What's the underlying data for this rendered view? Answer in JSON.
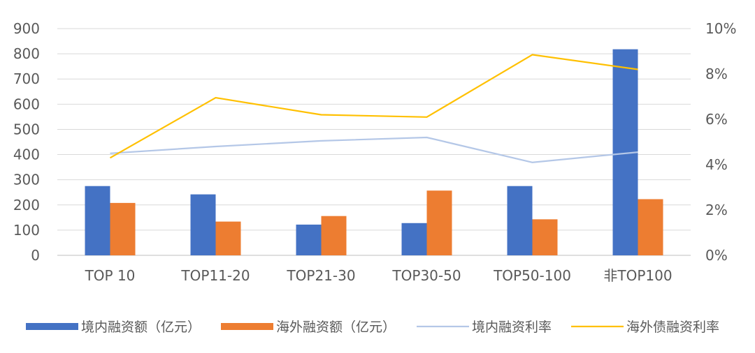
{
  "chart_data": {
    "type": "bar",
    "categories": [
      "TOP 10",
      "TOP11-20",
      "TOP21-30",
      "TOP30-50",
      "TOP50-100",
      "非TOP100"
    ],
    "series": [
      {
        "name": "境内融资额（亿元）",
        "type": "bar",
        "axis": "left",
        "color": "#4472C4",
        "values": [
          275,
          242,
          122,
          128,
          275,
          818
        ]
      },
      {
        "name": "海外融资额（亿元）",
        "type": "bar",
        "axis": "left",
        "color": "#ED7D31",
        "values": [
          208,
          134,
          156,
          257,
          143,
          223
        ]
      },
      {
        "name": "境内融资利率",
        "type": "line",
        "axis": "right",
        "color": "#B4C7E7",
        "values": [
          4.5,
          4.8,
          5.05,
          5.2,
          4.1,
          4.55
        ]
      },
      {
        "name": "海外债融资利率",
        "type": "line",
        "axis": "right",
        "color": "#FFC000",
        "values": [
          4.3,
          6.95,
          6.2,
          6.1,
          8.85,
          8.2
        ]
      }
    ],
    "y_left": {
      "min": 0,
      "max": 900,
      "ticks": [
        "0",
        "100",
        "200",
        "300",
        "400",
        "500",
        "600",
        "700",
        "800",
        "900"
      ]
    },
    "y_right": {
      "min": 0,
      "max": 10,
      "ticks": [
        "0%",
        "2%",
        "4%",
        "6%",
        "8%",
        "10%"
      ]
    },
    "grid": true,
    "legend_position": "bottom"
  }
}
